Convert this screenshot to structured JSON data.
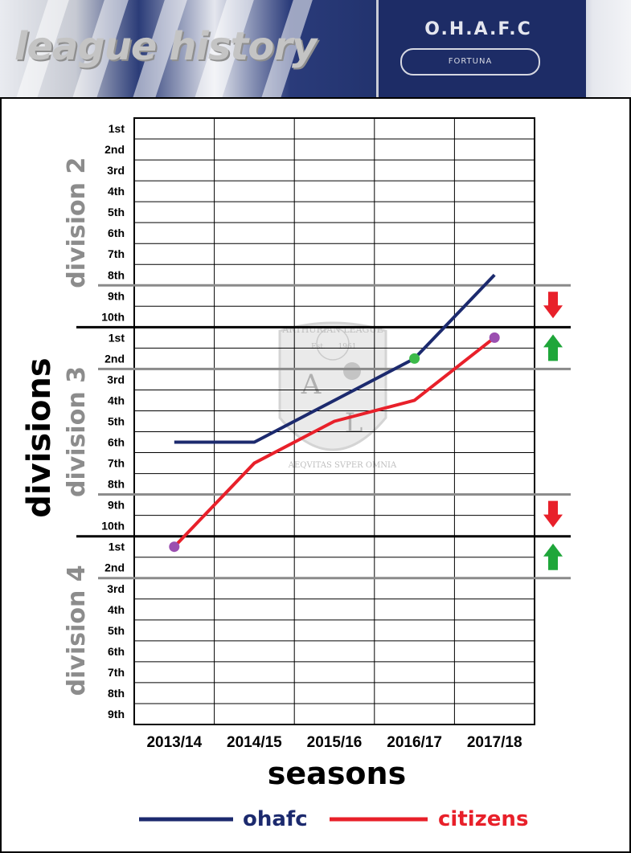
{
  "banner": {
    "title": "league history",
    "crest_name": "O.H.A.F.C",
    "crest_motto": "FORTUNA"
  },
  "watermark": {
    "top_text": "ARTHURIAN LEAGUE",
    "est": "Est.",
    "year": "1961",
    "left_letter": "A",
    "right_letter": "L",
    "bottom_text": "AEQVITAS SVPER OMNIA"
  },
  "colors": {
    "ohafc": "#1c2a6e",
    "citizens": "#e8202a",
    "division_label": "#8c8c8c",
    "promoted_marker": "#3dbb4a",
    "champion_marker": "#9b4fb0",
    "up_arrow": "#1fa63a",
    "down_arrow": "#e8202a"
  },
  "chart_data": {
    "type": "line",
    "title": "league history",
    "xlabel": "seasons",
    "ylabel": "divisions",
    "categories": [
      "2013/14",
      "2014/15",
      "2015/16",
      "2016/17",
      "2017/18"
    ],
    "y_tick_labels": [
      "1st",
      "2nd",
      "3rd",
      "4th",
      "5th",
      "6th",
      "7th",
      "8th",
      "9th",
      "10th",
      "1st",
      "2nd",
      "3rd",
      "4th",
      "5th",
      "6th",
      "7th",
      "8th",
      "9th",
      "10th",
      "1st",
      "2nd",
      "3rd",
      "4th",
      "5th",
      "6th",
      "7th",
      "8th",
      "9th"
    ],
    "divisions": [
      {
        "name": "division 2",
        "teams": 10
      },
      {
        "name": "division 3",
        "teams": 10
      },
      {
        "name": "division 4",
        "teams": 9
      }
    ],
    "y_note": "y = overall ladder rank from top (division 2 1st = 1 ... division 4 9th = 29)",
    "series": [
      {
        "name": "ohafc",
        "values": [
          16,
          16,
          14,
          12,
          8
        ],
        "positions": [
          "division 3 6th",
          "division 3 6th",
          "division 3 4th",
          "division 3 2nd",
          "division 2 8th"
        ]
      },
      {
        "name": "citizens",
        "values": [
          21,
          17,
          15,
          14,
          11
        ],
        "positions": [
          "division 4 1st",
          "division 3 7th",
          "division 3 5th",
          "division 3 4th",
          "division 3 1st"
        ]
      }
    ],
    "markers": [
      {
        "series": "citizens",
        "category": "2013/14",
        "value": 21,
        "kind": "champion"
      },
      {
        "series": "ohafc",
        "category": "2016/17",
        "value": 12,
        "kind": "promoted"
      },
      {
        "series": "citizens",
        "category": "2017/18",
        "value": 11,
        "kind": "champion"
      }
    ],
    "zones": [
      {
        "arrow": "down",
        "ranks": [
          9,
          10
        ]
      },
      {
        "arrow": "up",
        "ranks": [
          11,
          12
        ]
      },
      {
        "arrow": "down",
        "ranks": [
          19,
          20
        ]
      },
      {
        "arrow": "up",
        "ranks": [
          21,
          22
        ]
      }
    ],
    "legend": {
      "placement": "bottom",
      "entries": [
        "ohafc",
        "citizens"
      ]
    },
    "grid": true
  }
}
